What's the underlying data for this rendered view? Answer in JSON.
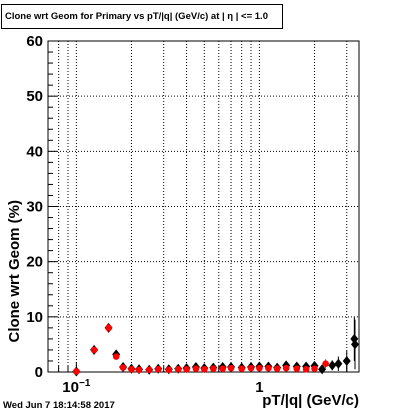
{
  "chart_data": {
    "type": "scatter",
    "title": "Clone wrt Geom for Primary vs pT/|q| (GeV/c) at | η | <= 1.0",
    "xlabel": "pT/|q| (GeV/c)",
    "ylabel": "Clone wrt Geom (%)",
    "xscale": "log",
    "xlim": [
      0.07,
      3.5
    ],
    "ylim": [
      0,
      60
    ],
    "grid": true,
    "x_tick_labels": [
      {
        "x": 0.1,
        "base": "10",
        "exp": "−1"
      },
      {
        "x": 1,
        "base": "1",
        "exp": ""
      }
    ],
    "y_tick_labels": [
      "0",
      "10",
      "20",
      "30",
      "40",
      "50",
      "60"
    ],
    "series": [
      {
        "color": "#000000",
        "marker": "diamond",
        "points": [
          {
            "x": 0.1,
            "y": 0.1,
            "err": 0.1
          },
          {
            "x": 0.125,
            "y": 4.0,
            "err": 0.4
          },
          {
            "x": 0.15,
            "y": 8.0,
            "err": 0.7
          },
          {
            "x": 0.165,
            "y": 3.2,
            "err": 0.4
          },
          {
            "x": 0.18,
            "y": 0.9,
            "err": 0.2
          },
          {
            "x": 0.2,
            "y": 0.6,
            "err": 0.15
          },
          {
            "x": 0.22,
            "y": 0.5,
            "err": 0.15
          },
          {
            "x": 0.25,
            "y": 0.4,
            "err": 0.1
          },
          {
            "x": 0.28,
            "y": 0.6,
            "err": 0.1
          },
          {
            "x": 0.32,
            "y": 0.5,
            "err": 0.1
          },
          {
            "x": 0.36,
            "y": 0.6,
            "err": 0.1
          },
          {
            "x": 0.4,
            "y": 0.7,
            "err": 0.1
          },
          {
            "x": 0.45,
            "y": 0.9,
            "err": 0.1
          },
          {
            "x": 0.5,
            "y": 0.7,
            "err": 0.1
          },
          {
            "x": 0.56,
            "y": 0.8,
            "err": 0.1
          },
          {
            "x": 0.63,
            "y": 0.9,
            "err": 0.1
          },
          {
            "x": 0.7,
            "y": 0.9,
            "err": 0.15
          },
          {
            "x": 0.8,
            "y": 0.8,
            "err": 0.15
          },
          {
            "x": 0.9,
            "y": 0.9,
            "err": 0.15
          },
          {
            "x": 1.0,
            "y": 1.0,
            "err": 0.2
          },
          {
            "x": 1.12,
            "y": 1.0,
            "err": 0.2
          },
          {
            "x": 1.25,
            "y": 0.8,
            "err": 0.2
          },
          {
            "x": 1.4,
            "y": 1.2,
            "err": 0.25
          },
          {
            "x": 1.6,
            "y": 1.0,
            "err": 0.3
          },
          {
            "x": 1.8,
            "y": 1.0,
            "err": 0.35
          },
          {
            "x": 2.0,
            "y": 1.1,
            "err": 0.5
          },
          {
            "x": 2.2,
            "y": 0.5,
            "err": 0.5
          },
          {
            "x": 2.5,
            "y": 1.2,
            "err": 0.9
          },
          {
            "x": 2.7,
            "y": 1.5,
            "err": 1.3
          },
          {
            "x": 3.0,
            "y": 2.0,
            "err": 1.8
          },
          {
            "x": 3.3,
            "y": 6.0,
            "err": 4.0
          },
          {
            "x": 3.6,
            "y": 5.0,
            "err": 4.5
          }
        ]
      },
      {
        "color": "#ff0000",
        "marker": "circle",
        "points": [
          {
            "x": 0.1,
            "y": 0.1,
            "err": 0.1
          },
          {
            "x": 0.125,
            "y": 4.0,
            "err": 0.4
          },
          {
            "x": 0.15,
            "y": 8.0,
            "err": 0.7
          },
          {
            "x": 0.165,
            "y": 2.8,
            "err": 0.4
          },
          {
            "x": 0.18,
            "y": 0.8,
            "err": 0.2
          },
          {
            "x": 0.2,
            "y": 0.5,
            "err": 0.15
          },
          {
            "x": 0.22,
            "y": 0.4,
            "err": 0.15
          },
          {
            "x": 0.25,
            "y": 0.4,
            "err": 0.1
          },
          {
            "x": 0.28,
            "y": 0.5,
            "err": 0.1
          },
          {
            "x": 0.32,
            "y": 0.4,
            "err": 0.1
          },
          {
            "x": 0.36,
            "y": 0.5,
            "err": 0.1
          },
          {
            "x": 0.4,
            "y": 0.5,
            "err": 0.1
          },
          {
            "x": 0.45,
            "y": 0.6,
            "err": 0.1
          },
          {
            "x": 0.5,
            "y": 0.5,
            "err": 0.1
          },
          {
            "x": 0.56,
            "y": 0.6,
            "err": 0.1
          },
          {
            "x": 0.63,
            "y": 0.6,
            "err": 0.1
          },
          {
            "x": 0.7,
            "y": 0.7,
            "err": 0.15
          },
          {
            "x": 0.8,
            "y": 0.6,
            "err": 0.15
          },
          {
            "x": 0.9,
            "y": 0.7,
            "err": 0.15
          },
          {
            "x": 1.0,
            "y": 0.7,
            "err": 0.2
          },
          {
            "x": 1.12,
            "y": 0.7,
            "err": 0.2
          },
          {
            "x": 1.25,
            "y": 0.6,
            "err": 0.2
          },
          {
            "x": 1.4,
            "y": 0.7,
            "err": 0.25
          },
          {
            "x": 1.6,
            "y": 0.6,
            "err": 0.3
          },
          {
            "x": 1.8,
            "y": 0.5,
            "err": 0.35
          },
          {
            "x": 2.0,
            "y": 0.6,
            "err": 0.5
          },
          {
            "x": 2.3,
            "y": 1.5,
            "err": 0.8
          }
        ]
      }
    ]
  },
  "timestamp": "Wed Jun  7 18:14:58 2017"
}
